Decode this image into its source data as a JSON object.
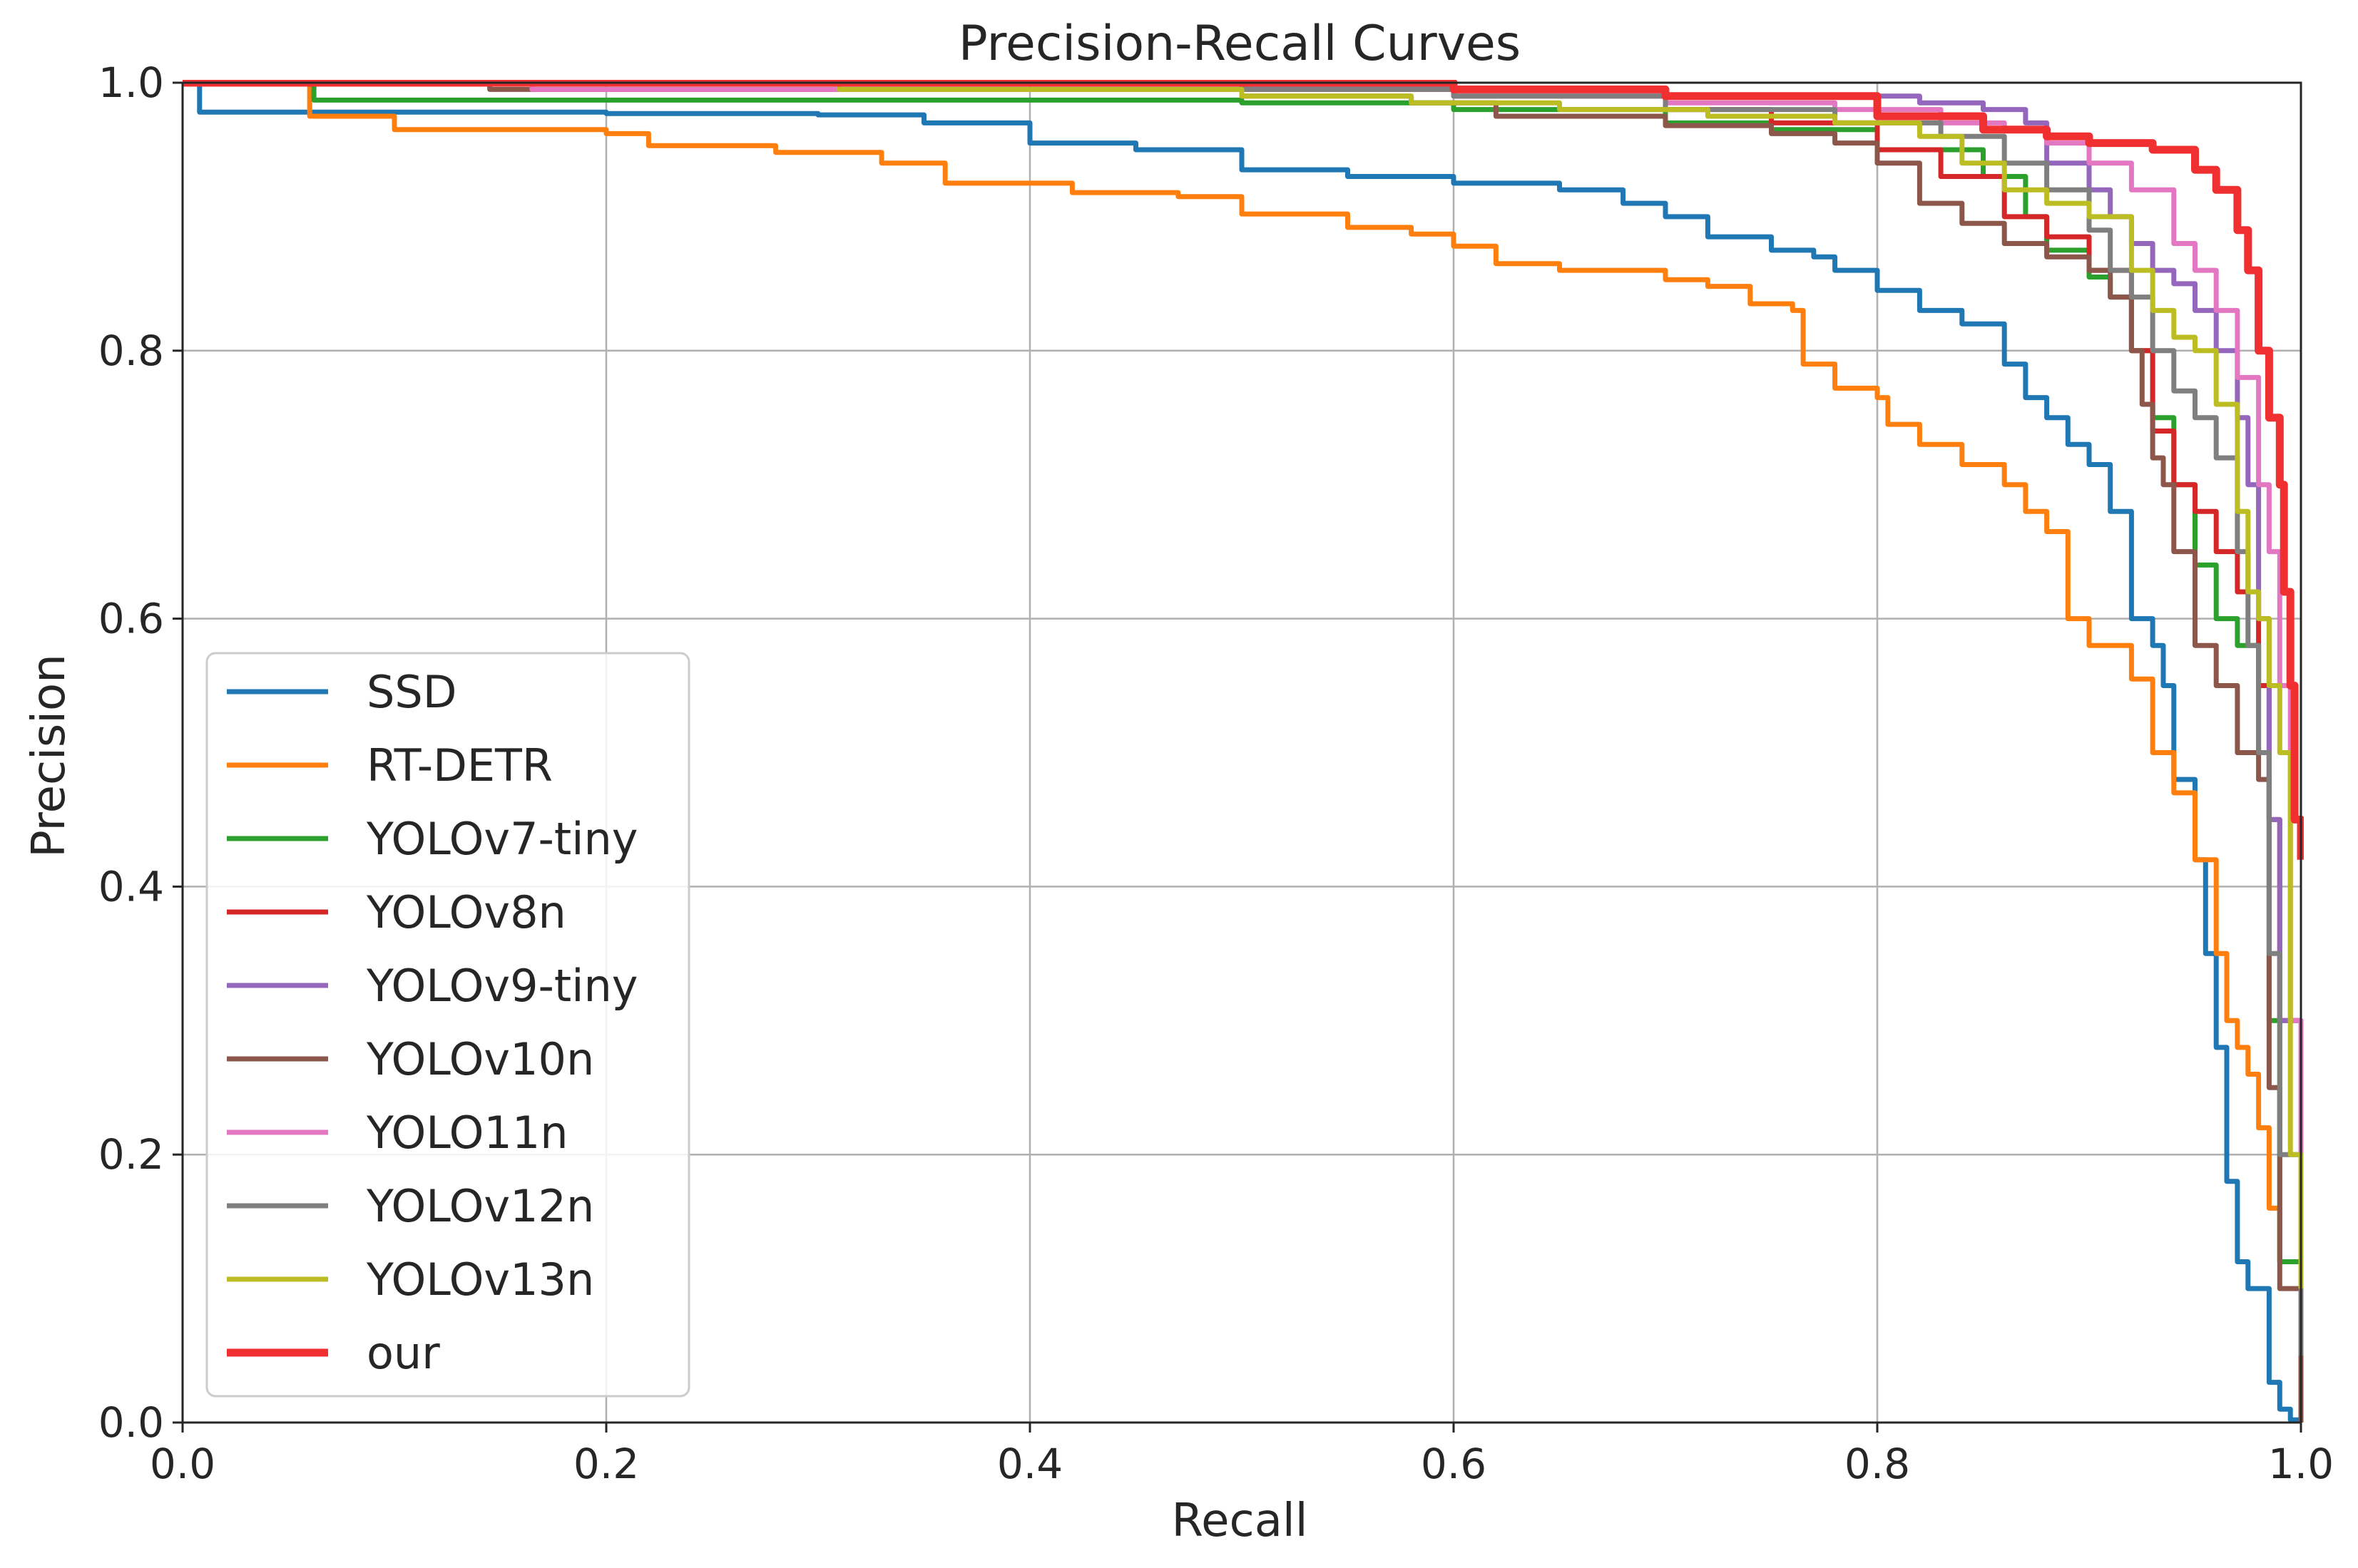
{
  "chart_data": {
    "type": "line",
    "title": "Precision-Recall Curves",
    "xlabel": "Recall",
    "ylabel": "Precision",
    "xlim": [
      0.0,
      1.0
    ],
    "ylim": [
      0.0,
      1.0
    ],
    "xticks": [
      0.0,
      0.2,
      0.4,
      0.6,
      0.8,
      1.0
    ],
    "yticks": [
      0.0,
      0.2,
      0.4,
      0.6,
      0.8,
      1.0
    ],
    "xtick_labels": [
      "0.0",
      "0.2",
      "0.4",
      "0.6",
      "0.8",
      "1.0"
    ],
    "ytick_labels": [
      "0.0",
      "0.2",
      "0.4",
      "0.6",
      "0.8",
      "1.0"
    ],
    "grid": true,
    "legend_position": "lower-left",
    "series": [
      {
        "name": "SSD",
        "color": "#1f77b4",
        "width": "normal",
        "points": [
          [
            0,
            1.0
          ],
          [
            0.005,
            1.0
          ],
          [
            0.008,
            0.978
          ],
          [
            0.1,
            0.978
          ],
          [
            0.2,
            0.977
          ],
          [
            0.3,
            0.976
          ],
          [
            0.35,
            0.97
          ],
          [
            0.4,
            0.955
          ],
          [
            0.45,
            0.95
          ],
          [
            0.5,
            0.935
          ],
          [
            0.55,
            0.93
          ],
          [
            0.6,
            0.925
          ],
          [
            0.65,
            0.92
          ],
          [
            0.68,
            0.91
          ],
          [
            0.7,
            0.9
          ],
          [
            0.72,
            0.885
          ],
          [
            0.75,
            0.875
          ],
          [
            0.77,
            0.87
          ],
          [
            0.78,
            0.86
          ],
          [
            0.8,
            0.845
          ],
          [
            0.82,
            0.83
          ],
          [
            0.84,
            0.82
          ],
          [
            0.86,
            0.79
          ],
          [
            0.87,
            0.765
          ],
          [
            0.88,
            0.75
          ],
          [
            0.89,
            0.73
          ],
          [
            0.9,
            0.715
          ],
          [
            0.91,
            0.68
          ],
          [
            0.92,
            0.6
          ],
          [
            0.93,
            0.58
          ],
          [
            0.935,
            0.55
          ],
          [
            0.94,
            0.48
          ],
          [
            0.95,
            0.42
          ],
          [
            0.955,
            0.35
          ],
          [
            0.96,
            0.28
          ],
          [
            0.965,
            0.18
          ],
          [
            0.97,
            0.12
          ],
          [
            0.975,
            0.1
          ],
          [
            0.985,
            0.03
          ],
          [
            0.99,
            0.01
          ],
          [
            0.995,
            0.002
          ],
          [
            1.0,
            0.0
          ]
        ]
      },
      {
        "name": "RT-DETR",
        "color": "#ff7f0e",
        "width": "normal",
        "points": [
          [
            0,
            1.0
          ],
          [
            0.055,
            1.0
          ],
          [
            0.06,
            0.975
          ],
          [
            0.1,
            0.965
          ],
          [
            0.2,
            0.962
          ],
          [
            0.22,
            0.953
          ],
          [
            0.28,
            0.948
          ],
          [
            0.33,
            0.94
          ],
          [
            0.36,
            0.925
          ],
          [
            0.42,
            0.918
          ],
          [
            0.47,
            0.915
          ],
          [
            0.5,
            0.902
          ],
          [
            0.55,
            0.892
          ],
          [
            0.58,
            0.887
          ],
          [
            0.6,
            0.878
          ],
          [
            0.62,
            0.865
          ],
          [
            0.65,
            0.86
          ],
          [
            0.7,
            0.853
          ],
          [
            0.72,
            0.848
          ],
          [
            0.74,
            0.835
          ],
          [
            0.76,
            0.83
          ],
          [
            0.765,
            0.79
          ],
          [
            0.78,
            0.772
          ],
          [
            0.8,
            0.765
          ],
          [
            0.805,
            0.745
          ],
          [
            0.82,
            0.73
          ],
          [
            0.84,
            0.715
          ],
          [
            0.86,
            0.7
          ],
          [
            0.87,
            0.68
          ],
          [
            0.88,
            0.665
          ],
          [
            0.89,
            0.6
          ],
          [
            0.9,
            0.58
          ],
          [
            0.92,
            0.555
          ],
          [
            0.93,
            0.5
          ],
          [
            0.94,
            0.47
          ],
          [
            0.95,
            0.42
          ],
          [
            0.96,
            0.35
          ],
          [
            0.965,
            0.3
          ],
          [
            0.97,
            0.28
          ],
          [
            0.975,
            0.26
          ],
          [
            0.98,
            0.22
          ],
          [
            0.985,
            0.16
          ],
          [
            0.99,
            0.12
          ],
          [
            1.0,
            0.0
          ]
        ]
      },
      {
        "name": "YOLOv7-tiny",
        "color": "#2ca02c",
        "width": "normal",
        "points": [
          [
            0,
            1.0
          ],
          [
            0.058,
            1.0
          ],
          [
            0.062,
            0.987
          ],
          [
            0.3,
            0.987
          ],
          [
            0.5,
            0.985
          ],
          [
            0.6,
            0.98
          ],
          [
            0.7,
            0.97
          ],
          [
            0.75,
            0.965
          ],
          [
            0.8,
            0.95
          ],
          [
            0.85,
            0.93
          ],
          [
            0.87,
            0.9
          ],
          [
            0.88,
            0.875
          ],
          [
            0.9,
            0.855
          ],
          [
            0.91,
            0.84
          ],
          [
            0.92,
            0.8
          ],
          [
            0.93,
            0.75
          ],
          [
            0.94,
            0.7
          ],
          [
            0.95,
            0.64
          ],
          [
            0.96,
            0.6
          ],
          [
            0.97,
            0.58
          ],
          [
            0.98,
            0.5
          ],
          [
            0.985,
            0.3
          ],
          [
            0.99,
            0.12
          ],
          [
            1.0,
            0.05
          ]
        ]
      },
      {
        "name": "YOLOv8n",
        "color": "#d62728",
        "width": "normal",
        "points": [
          [
            0,
            1.0
          ],
          [
            0.3,
            1.0
          ],
          [
            0.5,
            0.995
          ],
          [
            0.6,
            0.99
          ],
          [
            0.7,
            0.98
          ],
          [
            0.75,
            0.97
          ],
          [
            0.8,
            0.95
          ],
          [
            0.83,
            0.93
          ],
          [
            0.86,
            0.9
          ],
          [
            0.88,
            0.885
          ],
          [
            0.9,
            0.86
          ],
          [
            0.92,
            0.8
          ],
          [
            0.93,
            0.74
          ],
          [
            0.94,
            0.7
          ],
          [
            0.95,
            0.68
          ],
          [
            0.96,
            0.65
          ],
          [
            0.97,
            0.62
          ],
          [
            0.98,
            0.55
          ],
          [
            0.985,
            0.45
          ],
          [
            0.99,
            0.3
          ],
          [
            1.0,
            0.1
          ]
        ]
      },
      {
        "name": "YOLOv9-tiny",
        "color": "#9467bd",
        "width": "normal",
        "points": [
          [
            0,
            1.0
          ],
          [
            0.3,
            1.0
          ],
          [
            0.5,
            0.998
          ],
          [
            0.6,
            0.995
          ],
          [
            0.7,
            0.99
          ],
          [
            0.78,
            0.99
          ],
          [
            0.82,
            0.985
          ],
          [
            0.85,
            0.98
          ],
          [
            0.87,
            0.97
          ],
          [
            0.88,
            0.94
          ],
          [
            0.9,
            0.92
          ],
          [
            0.91,
            0.9
          ],
          [
            0.92,
            0.88
          ],
          [
            0.93,
            0.86
          ],
          [
            0.94,
            0.85
          ],
          [
            0.95,
            0.83
          ],
          [
            0.96,
            0.8
          ],
          [
            0.97,
            0.75
          ],
          [
            0.975,
            0.7
          ],
          [
            0.98,
            0.6
          ],
          [
            0.985,
            0.45
          ],
          [
            0.99,
            0.3
          ],
          [
            1.0,
            0.1
          ]
        ]
      },
      {
        "name": "YOLOv10n",
        "color": "#8c564b",
        "width": "normal",
        "points": [
          [
            0,
            1.0
          ],
          [
            0.14,
            1.0
          ],
          [
            0.145,
            0.995
          ],
          [
            0.3,
            0.995
          ],
          [
            0.5,
            0.99
          ],
          [
            0.58,
            0.985
          ],
          [
            0.62,
            0.975
          ],
          [
            0.7,
            0.968
          ],
          [
            0.75,
            0.962
          ],
          [
            0.78,
            0.955
          ],
          [
            0.8,
            0.94
          ],
          [
            0.82,
            0.91
          ],
          [
            0.84,
            0.895
          ],
          [
            0.86,
            0.88
          ],
          [
            0.88,
            0.87
          ],
          [
            0.9,
            0.86
          ],
          [
            0.91,
            0.84
          ],
          [
            0.92,
            0.8
          ],
          [
            0.925,
            0.76
          ],
          [
            0.93,
            0.72
          ],
          [
            0.935,
            0.7
          ],
          [
            0.94,
            0.65
          ],
          [
            0.95,
            0.58
          ],
          [
            0.96,
            0.55
          ],
          [
            0.97,
            0.5
          ],
          [
            0.98,
            0.48
          ],
          [
            0.985,
            0.25
          ],
          [
            0.99,
            0.1
          ],
          [
            1.0,
            0.0
          ]
        ]
      },
      {
        "name": "YOLO11n",
        "color": "#e377c2",
        "width": "normal",
        "points": [
          [
            0,
            1.0
          ],
          [
            0.16,
            1.0
          ],
          [
            0.165,
            0.995
          ],
          [
            0.4,
            0.995
          ],
          [
            0.6,
            0.99
          ],
          [
            0.7,
            0.985
          ],
          [
            0.78,
            0.98
          ],
          [
            0.83,
            0.97
          ],
          [
            0.86,
            0.965
          ],
          [
            0.88,
            0.955
          ],
          [
            0.9,
            0.94
          ],
          [
            0.92,
            0.92
          ],
          [
            0.94,
            0.88
          ],
          [
            0.95,
            0.86
          ],
          [
            0.96,
            0.83
          ],
          [
            0.97,
            0.78
          ],
          [
            0.98,
            0.7
          ],
          [
            0.985,
            0.65
          ],
          [
            0.99,
            0.55
          ],
          [
            0.995,
            0.3
          ],
          [
            1.0,
            0.1
          ]
        ]
      },
      {
        "name": "YOLOv12n",
        "color": "#7f7f7f",
        "width": "normal",
        "points": [
          [
            0,
            1.0
          ],
          [
            0.3,
            1.0
          ],
          [
            0.5,
            0.995
          ],
          [
            0.6,
            0.99
          ],
          [
            0.7,
            0.98
          ],
          [
            0.78,
            0.97
          ],
          [
            0.83,
            0.96
          ],
          [
            0.86,
            0.94
          ],
          [
            0.88,
            0.92
          ],
          [
            0.9,
            0.89
          ],
          [
            0.91,
            0.86
          ],
          [
            0.92,
            0.84
          ],
          [
            0.93,
            0.8
          ],
          [
            0.94,
            0.77
          ],
          [
            0.95,
            0.75
          ],
          [
            0.96,
            0.72
          ],
          [
            0.97,
            0.65
          ],
          [
            0.975,
            0.58
          ],
          [
            0.98,
            0.5
          ],
          [
            0.985,
            0.35
          ],
          [
            0.99,
            0.2
          ],
          [
            1.0,
            0.05
          ]
        ]
      },
      {
        "name": "YOLOv13n",
        "color": "#bcbd22",
        "width": "normal",
        "points": [
          [
            0,
            1.0
          ],
          [
            0.3,
            1.0
          ],
          [
            0.31,
            0.995
          ],
          [
            0.5,
            0.99
          ],
          [
            0.58,
            0.985
          ],
          [
            0.65,
            0.98
          ],
          [
            0.72,
            0.975
          ],
          [
            0.78,
            0.97
          ],
          [
            0.82,
            0.96
          ],
          [
            0.84,
            0.94
          ],
          [
            0.86,
            0.92
          ],
          [
            0.88,
            0.91
          ],
          [
            0.9,
            0.9
          ],
          [
            0.92,
            0.86
          ],
          [
            0.93,
            0.83
          ],
          [
            0.94,
            0.81
          ],
          [
            0.95,
            0.8
          ],
          [
            0.96,
            0.76
          ],
          [
            0.97,
            0.68
          ],
          [
            0.975,
            0.62
          ],
          [
            0.98,
            0.6
          ],
          [
            0.985,
            0.55
          ],
          [
            0.99,
            0.5
          ],
          [
            0.995,
            0.2
          ],
          [
            1.0,
            0.1
          ]
        ]
      },
      {
        "name": "our",
        "color": "#f03030",
        "width": "thick",
        "points": [
          [
            0,
            1.0
          ],
          [
            0.2,
            1.0
          ],
          [
            0.4,
            1.0
          ],
          [
            0.6,
            0.995
          ],
          [
            0.7,
            0.99
          ],
          [
            0.8,
            0.975
          ],
          [
            0.85,
            0.965
          ],
          [
            0.88,
            0.96
          ],
          [
            0.9,
            0.955
          ],
          [
            0.93,
            0.95
          ],
          [
            0.95,
            0.935
          ],
          [
            0.96,
            0.92
          ],
          [
            0.97,
            0.89
          ],
          [
            0.975,
            0.86
          ],
          [
            0.98,
            0.8
          ],
          [
            0.985,
            0.75
          ],
          [
            0.99,
            0.7
          ],
          [
            0.992,
            0.62
          ],
          [
            0.995,
            0.55
          ],
          [
            0.997,
            0.45
          ],
          [
            1.0,
            0.42
          ]
        ]
      }
    ]
  }
}
